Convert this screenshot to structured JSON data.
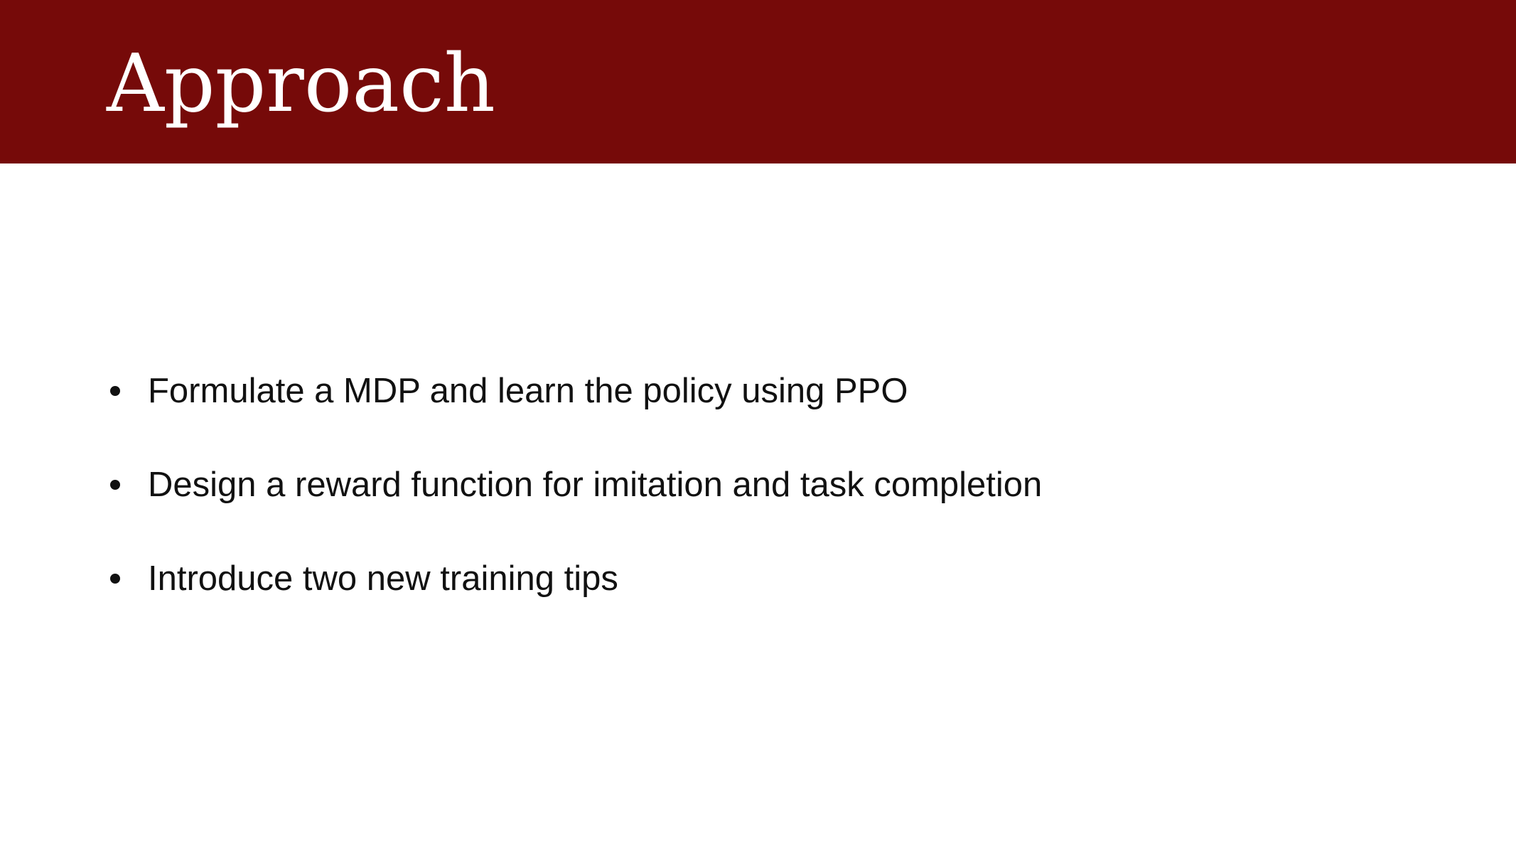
{
  "colors": {
    "header_background": "#760a09",
    "title_text": "#ffffff",
    "body_text": "#111111",
    "slide_background": "#ffffff"
  },
  "slide": {
    "title": "Approach",
    "bullets": [
      {
        "text": "Formulate a MDP and learn the policy using PPO"
      },
      {
        "text": "Design a reward function for imitation and task completion"
      },
      {
        "text": "Introduce two new training tips"
      }
    ]
  }
}
